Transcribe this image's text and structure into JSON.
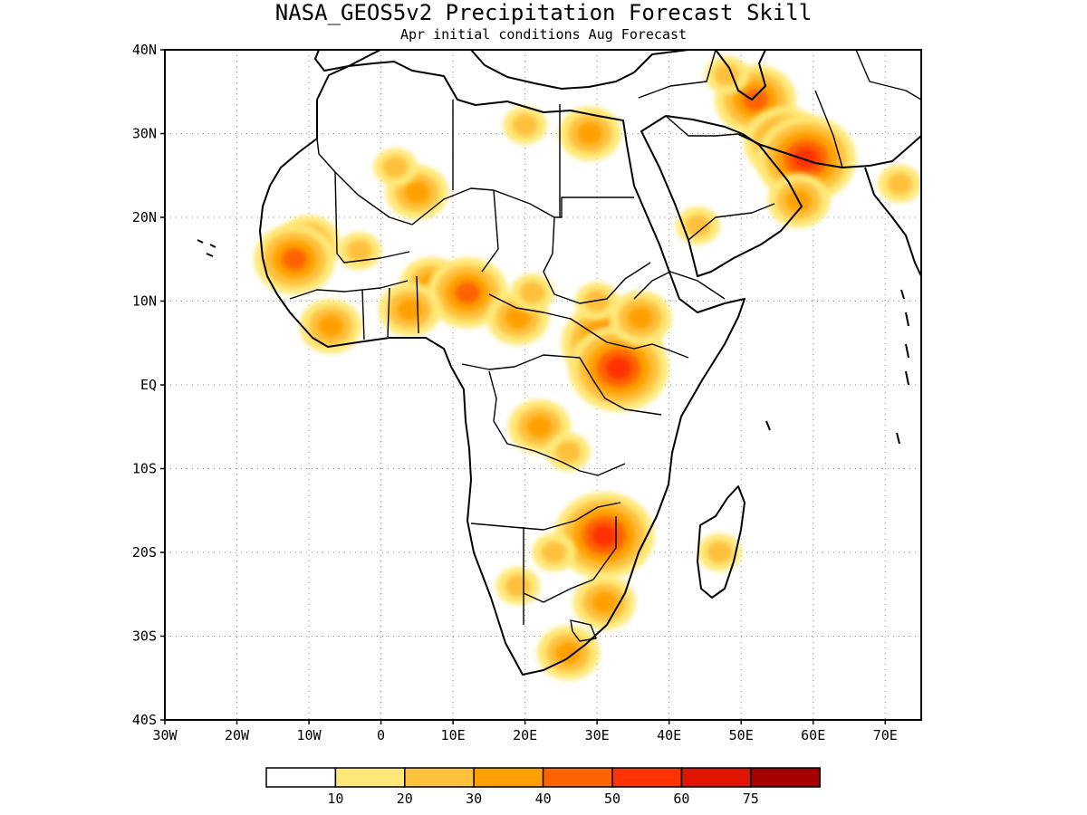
{
  "title": "NASA_GEOS5v2 Precipitation Forecast Skill",
  "subtitle": "Apr initial conditions  Aug Forecast",
  "map": {
    "lon_range": [
      -30,
      75
    ],
    "lat_range": [
      -40,
      40
    ],
    "lon_ticks": [
      "30W",
      "20W",
      "10W",
      "0",
      "10E",
      "20E",
      "30E",
      "40E",
      "50E",
      "60E",
      "70E"
    ],
    "lat_ticks": [
      "40N",
      "30N",
      "20N",
      "10N",
      "EQ",
      "10S",
      "20S",
      "30S",
      "40S"
    ],
    "grid": true
  },
  "legend": {
    "colors": [
      "#ffffff",
      "#ffe878",
      "#ffc03c",
      "#ffa000",
      "#ff6400",
      "#ff3200",
      "#e11400",
      "#a50000"
    ],
    "labels": [
      "10",
      "20",
      "30",
      "40",
      "50",
      "60",
      "75"
    ]
  },
  "skill_regions": [
    {
      "lon": -10,
      "lat": 17,
      "level": 3
    },
    {
      "lon": -12,
      "lat": 15,
      "level": 4
    },
    {
      "lon": -3,
      "lat": 16,
      "level": 2
    },
    {
      "lon": 5,
      "lat": 23,
      "level": 3
    },
    {
      "lon": 2,
      "lat": 26,
      "level": 2
    },
    {
      "lon": 7,
      "lat": 12,
      "level": 3
    },
    {
      "lon": 12,
      "lat": 11,
      "level": 4
    },
    {
      "lon": -7,
      "lat": 7,
      "level": 3
    },
    {
      "lon": 4,
      "lat": 9,
      "level": 3
    },
    {
      "lon": 19,
      "lat": 8,
      "level": 3
    },
    {
      "lon": 21,
      "lat": 11,
      "level": 2
    },
    {
      "lon": 32,
      "lat": 5,
      "level": 5
    },
    {
      "lon": 33,
      "lat": 2,
      "level": 5
    },
    {
      "lon": 36,
      "lat": 8,
      "level": 3
    },
    {
      "lon": 30,
      "lat": 10,
      "level": 2
    },
    {
      "lon": 22,
      "lat": -5,
      "level": 3
    },
    {
      "lon": 26,
      "lat": -8,
      "level": 2
    },
    {
      "lon": 31,
      "lat": -18,
      "level": 5
    },
    {
      "lon": 24,
      "lat": -20,
      "level": 2
    },
    {
      "lon": 19,
      "lat": -24,
      "level": 2
    },
    {
      "lon": 31,
      "lat": -26,
      "level": 3
    },
    {
      "lon": 26,
      "lat": -32,
      "level": 3
    },
    {
      "lon": 47,
      "lat": -20,
      "level": 2
    },
    {
      "lon": 44,
      "lat": 19,
      "level": 2
    },
    {
      "lon": 52,
      "lat": 34,
      "level": 4
    },
    {
      "lon": 56,
      "lat": 29,
      "level": 4
    },
    {
      "lon": 59,
      "lat": 27,
      "level": 5
    },
    {
      "lon": 72,
      "lat": 24,
      "level": 2
    },
    {
      "lon": 58,
      "lat": 22,
      "level": 3
    },
    {
      "lon": 20,
      "lat": 31,
      "level": 2
    },
    {
      "lon": 29,
      "lat": 30,
      "level": 3
    },
    {
      "lon": 48,
      "lat": 37,
      "level": 2
    }
  ]
}
